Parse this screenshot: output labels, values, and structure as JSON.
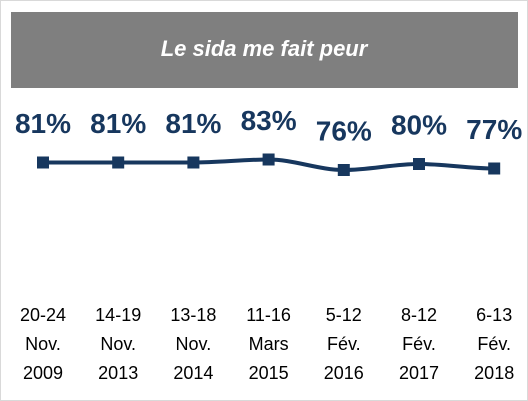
{
  "chart_data": {
    "type": "line",
    "title": "Le sida me fait peur",
    "categories": [
      [
        "20-24",
        "Nov.",
        "2009"
      ],
      [
        "14-19",
        "Nov.",
        "2013"
      ],
      [
        "13-18",
        "Nov.",
        "2014"
      ],
      [
        "11-16",
        "Mars",
        "2015"
      ],
      [
        "5-12",
        "Fév.",
        "2016"
      ],
      [
        "8-12",
        "Fév.",
        "2017"
      ],
      [
        "6-13",
        "Fév.",
        "2018"
      ]
    ],
    "series": [
      {
        "name": "Le sida me fait peur",
        "color": "#17375e",
        "values": [
          81,
          81,
          81,
          83,
          76,
          80,
          77
        ],
        "value_labels": [
          "81%",
          "81%",
          "81%",
          "83%",
          "76%",
          "80%",
          "77%"
        ]
      }
    ],
    "ylim": [
      0,
      100
    ]
  }
}
